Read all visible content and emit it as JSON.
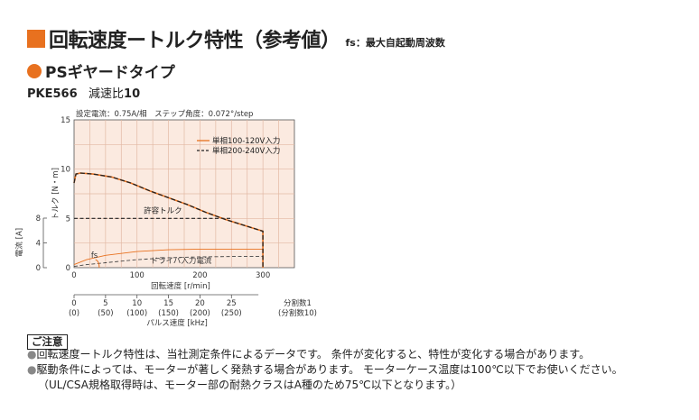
{
  "header": {
    "title": "回転速度ートルク特性（参考値）",
    "note": "fs：最大自起動周波数",
    "accent_color": "#e8711f"
  },
  "subheader": {
    "title": "PSギヤードタイプ"
  },
  "model": {
    "name": "PKE566",
    "ratio_label": "減速比",
    "ratio_value": "10"
  },
  "chart_data": {
    "type": "line",
    "condition_label": "設定電流：0.75A/相　ステップ角度：0.072°/step",
    "plot_background": "#fbeae0",
    "grid": true,
    "xlabel": "回転速度 [r/min]",
    "xlim": [
      0,
      350
    ],
    "x_ticks": [
      0,
      100,
      200,
      300
    ],
    "torque_axis": {
      "label": "トルク [N・m]",
      "ylim": [
        0,
        15
      ],
      "ticks": [
        0,
        5,
        10,
        15
      ]
    },
    "current_axis": {
      "label": "電流 [A]",
      "ylim": [
        0,
        8
      ],
      "ticks": [
        0,
        4,
        8
      ]
    },
    "legend_position": "top-right",
    "series": [
      {
        "name": "単相100-120V入力",
        "color": "#e8711f",
        "style": "solid",
        "x": [
          0,
          3,
          10,
          30,
          60,
          90,
          120,
          150,
          180,
          210,
          240,
          270,
          300,
          300
        ],
        "y": [
          8.6,
          9.5,
          9.6,
          9.5,
          9.2,
          8.6,
          7.8,
          7.1,
          6.4,
          5.6,
          4.9,
          4.3,
          3.7,
          0
        ]
      },
      {
        "name": "単相200-240V入力",
        "color": "#222222",
        "style": "dashed",
        "x": [
          0,
          3,
          10,
          30,
          60,
          90,
          120,
          150,
          180,
          210,
          240,
          270,
          300,
          300
        ],
        "y": [
          8.6,
          9.5,
          9.6,
          9.5,
          9.2,
          8.6,
          7.8,
          7.1,
          6.4,
          5.6,
          4.9,
          4.3,
          3.7,
          0
        ]
      }
    ],
    "permissible_torque": {
      "label": "許容トルク",
      "value": 5,
      "x_end": 250
    },
    "driver_input_current": {
      "label": "ドライバ入力電流",
      "series": [
        {
          "style": "solid",
          "color": "#e8711f",
          "x": [
            0,
            20,
            50,
            100,
            150,
            200,
            250,
            300
          ],
          "y": [
            0.5,
            1.3,
            2.0,
            2.6,
            2.9,
            3.0,
            3.0,
            3.0
          ]
        },
        {
          "style": "dashed",
          "color": "#444444",
          "x": [
            0,
            20,
            50,
            100,
            150,
            200,
            250,
            300
          ],
          "y": [
            0.2,
            0.5,
            0.8,
            1.3,
            1.6,
            1.75,
            1.8,
            1.8
          ]
        }
      ]
    },
    "fs": {
      "label": "fs",
      "x": 40
    },
    "pulse_axis": {
      "label": "パルス速度 [kHz]",
      "ticks": [
        "0",
        "5",
        "10",
        "15",
        "20",
        "25"
      ],
      "ticks_sub": [
        "(0)",
        "(50)",
        "(100)",
        "(150)",
        "(200)",
        "(250)"
      ],
      "div1_label": "分割数1",
      "div10_label": "(分割数10)"
    }
  },
  "caution": {
    "tag": "ご注意",
    "notes": [
      "回転速度ートルク特性は、当社測定条件によるデータです。 条件が変化すると、特性が変化する場合があります。",
      "駆動条件によっては、モーターが著しく発熱する場合があります。 モーターケース温度は100℃以下でお使いください。",
      "（UL/CSA規格取得時は、モーター部の耐熱クラスはA種のため75℃以下となります。）"
    ]
  }
}
